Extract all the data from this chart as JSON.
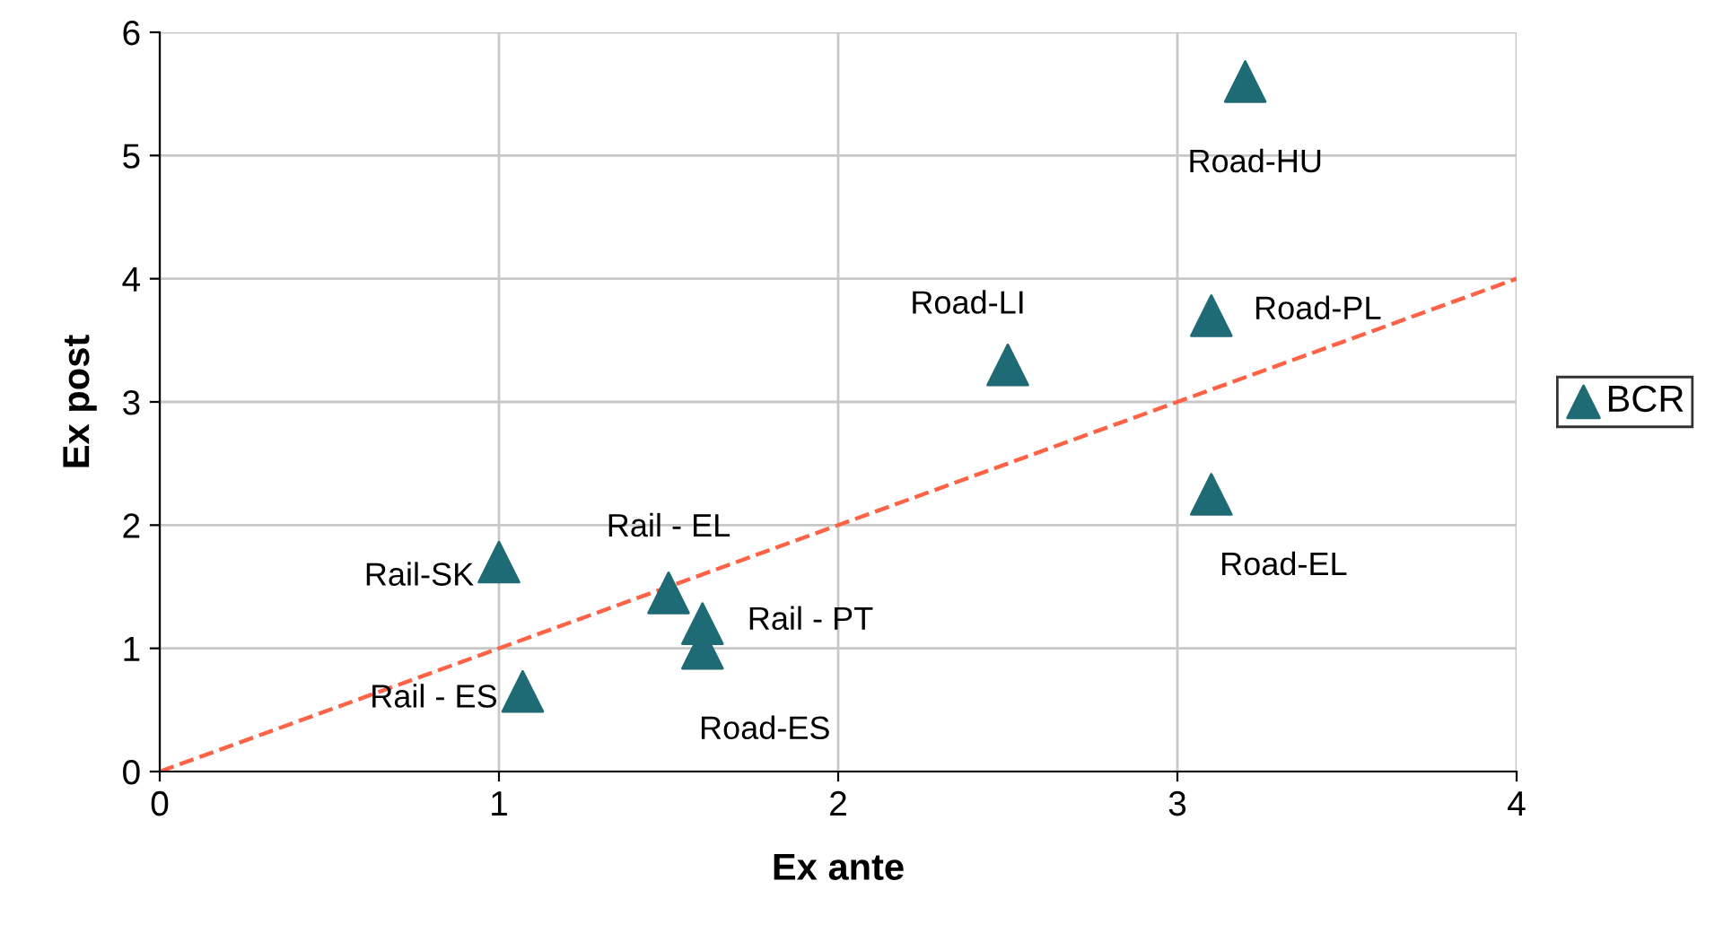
{
  "chart_data": {
    "type": "scatter",
    "xlabel": "Ex ante",
    "ylabel": "Ex post",
    "xlim": [
      0,
      4
    ],
    "ylim": [
      0,
      6
    ],
    "xticks": [
      0,
      1,
      2,
      3,
      4
    ],
    "yticks": [
      0,
      1,
      2,
      3,
      4,
      5,
      6
    ],
    "grid": true,
    "legend": "right",
    "series": [
      {
        "name": "BCR",
        "color": "#1f6b75",
        "marker": "triangle",
        "x": [
          3.2,
          3.1,
          2.5,
          3.1,
          1.0,
          1.5,
          1.6,
          1.6,
          1.07
        ],
        "values": [
          5.6,
          3.7,
          3.3,
          2.25,
          1.7,
          1.45,
          1.2,
          1.0,
          0.65
        ]
      },
      {
        "type": "line",
        "color": "#ff6347",
        "line_style": "dashed",
        "x": [
          0,
          4
        ],
        "values": [
          0,
          4
        ]
      }
    ],
    "annotations": [
      {
        "text": "Road-HU",
        "x": 3.2,
        "y": 5.6
      },
      {
        "text": "Road-PL",
        "x": 3.1,
        "y": 3.7
      },
      {
        "text": "Road-LI",
        "x": 2.5,
        "y": 3.3
      },
      {
        "text": "Road-EL",
        "x": 3.1,
        "y": 2.25
      },
      {
        "text": "Rail-SK",
        "x": 1.0,
        "y": 1.7
      },
      {
        "text": "Rail - EL",
        "x": 1.5,
        "y": 1.45
      },
      {
        "text": "Rail - PT",
        "x": 1.6,
        "y": 1.2
      },
      {
        "text": "Road-ES",
        "x": 1.6,
        "y": 1.0
      },
      {
        "text": "Rail - ES",
        "x": 1.07,
        "y": 0.65
      }
    ]
  }
}
